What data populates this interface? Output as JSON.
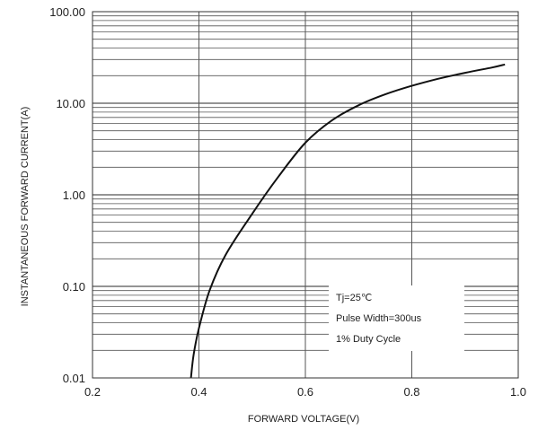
{
  "chart_data": {
    "type": "line",
    "title": "",
    "xlabel": "FORWARD VOLTAGE(V)",
    "ylabel": "INSTANTANEOUS FORWARD CURRENT(A)",
    "xlim": [
      0.2,
      1.0
    ],
    "ylim": [
      0.01,
      100
    ],
    "yscale": "log",
    "grid": true,
    "x_ticks": [
      0.2,
      0.4,
      0.6,
      0.8,
      1.0
    ],
    "x_tick_labels": [
      "0.2",
      "0.4",
      "0.6",
      "0.8",
      "1.0"
    ],
    "y_ticks": [
      0.01,
      0.1,
      1,
      10,
      100
    ],
    "y_tick_labels": [
      "0.01",
      "0.10",
      "1.00",
      "10.00",
      "100.00"
    ],
    "series": [
      {
        "x": [
          0.385,
          0.39,
          0.4,
          0.42,
          0.45,
          0.5,
          0.55,
          0.6,
          0.65,
          0.7,
          0.75,
          0.8,
          0.85,
          0.9,
          0.95,
          0.975
        ],
        "y": [
          0.01,
          0.018,
          0.035,
          0.09,
          0.22,
          0.62,
          1.6,
          3.7,
          6.5,
          9.5,
          12.5,
          15.5,
          18.5,
          21.5,
          24.5,
          26.5
        ]
      }
    ],
    "annotations": [
      "Tj=25℃",
      "Pulse Width=300us",
      "1% Duty Cycle"
    ]
  }
}
